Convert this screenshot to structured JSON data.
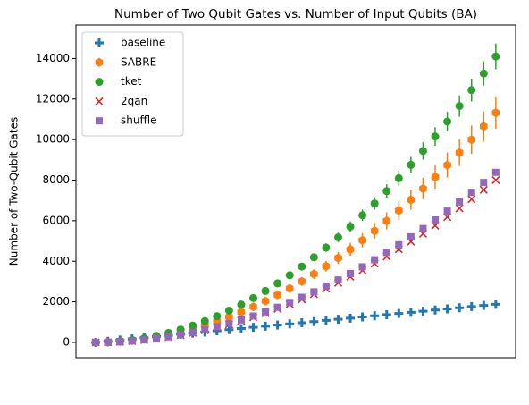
{
  "chart_data": {
    "type": "scatter",
    "title": "Number of Two Qubit Gates vs. Number of Input Qubits (BA)",
    "y_label": "Number of Two-Qubit Gates",
    "categories": [
      null,
      null,
      null,
      null,
      null,
      null,
      null,
      null,
      null,
      null,
      null,
      null,
      null,
      null,
      null,
      null,
      null,
      null,
      null,
      null,
      null,
      null,
      null,
      null,
      null,
      null,
      null,
      null,
      null,
      null,
      null,
      null,
      null,
      null
    ],
    "ylim": [
      -750,
      15650
    ],
    "yticks": [
      0,
      2000,
      4000,
      6000,
      8000,
      10000,
      12000,
      14000
    ],
    "legend": "upper left",
    "series": [
      {
        "name": "baseline",
        "color": "#1f77b4",
        "marker": "plus",
        "values": [
          0,
          57,
          114,
          171,
          228,
          285,
          342,
          399,
          456,
          513,
          570,
          627,
          684,
          741,
          798,
          855,
          912,
          969,
          1026,
          1083,
          1140,
          1197,
          1254,
          1311,
          1368,
          1425,
          1482,
          1539,
          1596,
          1653,
          1710,
          1767,
          1824,
          1881
        ]
      },
      {
        "name": "SABRE",
        "color": "#ff7f0e",
        "marker": "hexagon",
        "values": [
          0,
          10,
          42,
          94,
          166,
          260,
          374,
          510,
          666,
          842,
          1040,
          1258,
          1498,
          1758,
          2038,
          2340,
          2662,
          3006,
          3370,
          3754,
          4160,
          4586,
          5034,
          5502,
          5990,
          6500,
          7030,
          7582,
          8154,
          8746,
          9360,
          9994,
          10650,
          11326
        ],
        "errors": [
          0,
          1,
          3,
          7,
          12,
          18,
          26,
          36,
          47,
          59,
          73,
          88,
          105,
          123,
          143,
          164,
          186,
          210,
          236,
          263,
          291,
          321,
          352,
          385,
          419,
          455,
          492,
          531,
          571,
          612,
          655,
          700,
          746,
          793
        ]
      },
      {
        "name": "tket",
        "color": "#2ca02c",
        "marker": "circle",
        "values": [
          0,
          13,
          52,
          117,
          207,
          324,
          466,
          635,
          829,
          1049,
          1295,
          1567,
          1865,
          2189,
          2538,
          2914,
          3315,
          3743,
          4196,
          4675,
          5180,
          5711,
          6268,
          6851,
          7459,
          8094,
          8755,
          9441,
          10153,
          10891,
          11655,
          12445,
          13261,
          14103
        ],
        "errors": [
          0,
          1,
          2,
          5,
          9,
          15,
          21,
          29,
          37,
          47,
          58,
          71,
          84,
          99,
          114,
          131,
          149,
          168,
          189,
          210,
          233,
          257,
          282,
          308,
          336,
          364,
          394,
          425,
          457,
          490,
          524,
          560,
          597,
          635
        ]
      },
      {
        "name": "2qan",
        "color": "#d62728",
        "marker": "x",
        "values": [
          0,
          7,
          29,
          66,
          118,
          184,
          265,
          360,
          470,
          595,
          735,
          889,
          1058,
          1242,
          1441,
          1654,
          1882,
          2124,
          2381,
          2653,
          2940,
          3241,
          3557,
          3888,
          4234,
          4594,
          4969,
          5358,
          5762,
          6181,
          6615,
          7063,
          7526,
          8004
        ]
      },
      {
        "name": "shuffle",
        "color": "#9467bd",
        "marker": "square",
        "values": [
          0,
          8,
          31,
          69,
          123,
          193,
          277,
          377,
          493,
          624,
          770,
          932,
          1109,
          1301,
          1509,
          1733,
          1971,
          2225,
          2495,
          2780,
          3080,
          3396,
          3727,
          4073,
          4435,
          4813,
          5205,
          5613,
          6037,
          6476,
          6930,
          7400,
          7885,
          8385
        ]
      }
    ]
  }
}
